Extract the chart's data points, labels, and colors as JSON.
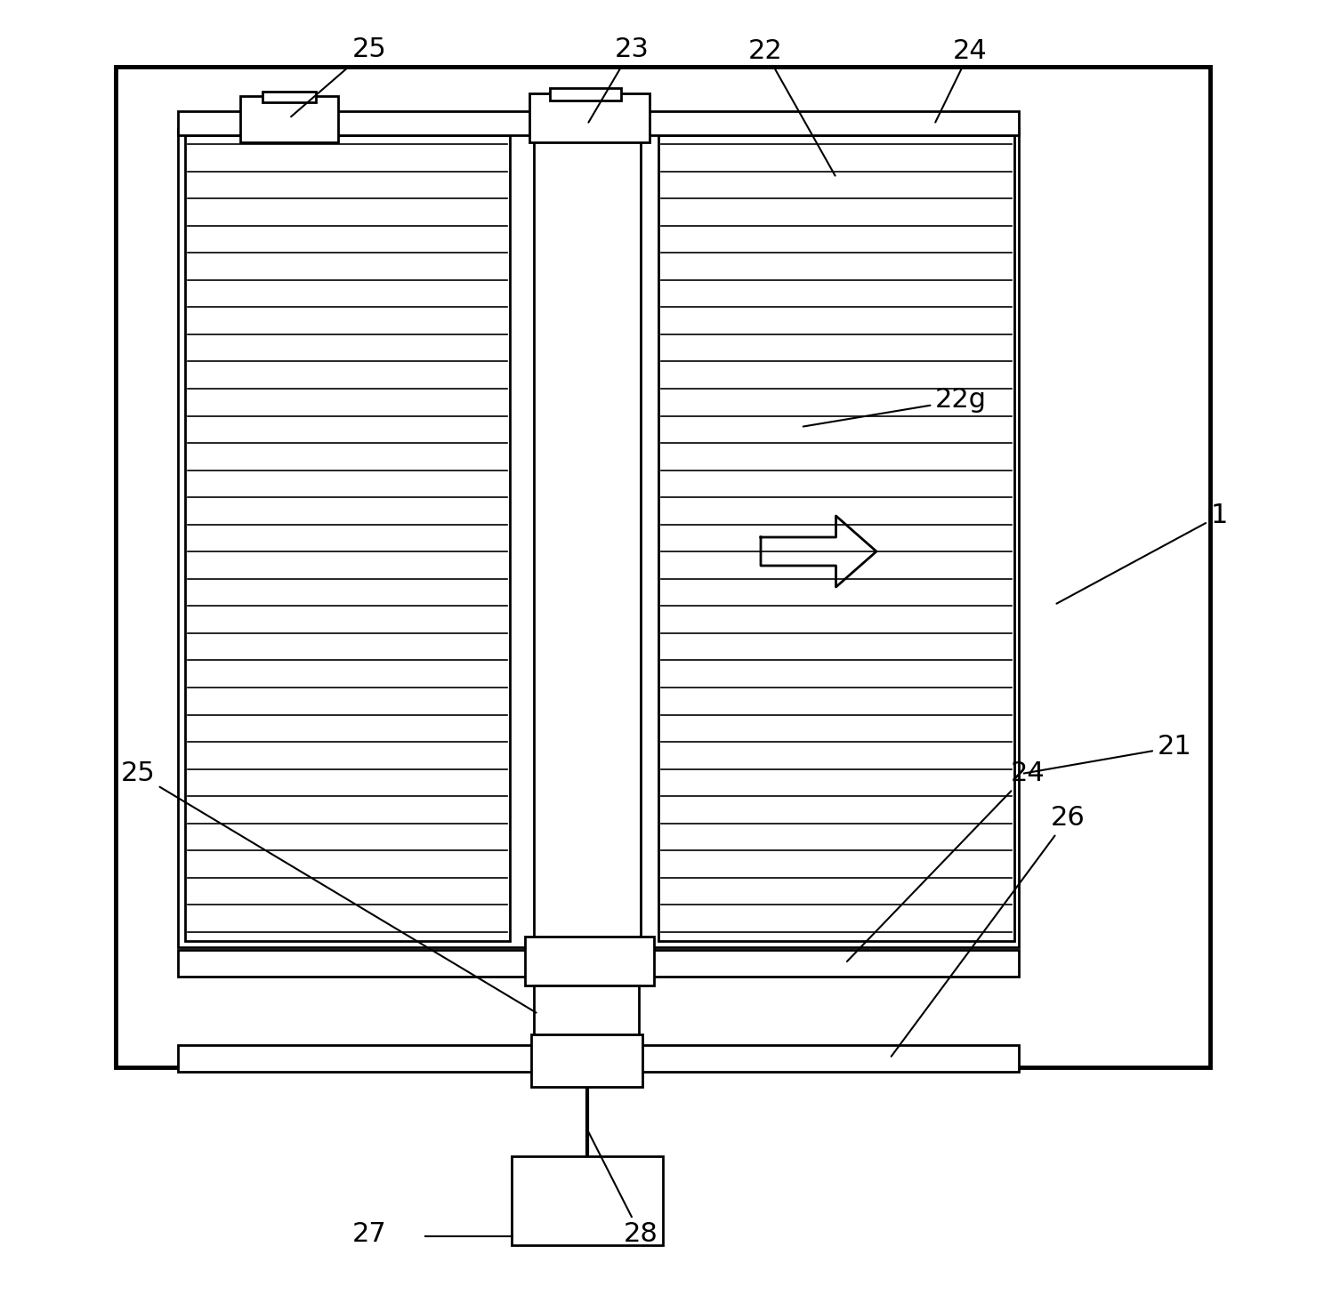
{
  "bg_color": "#ffffff",
  "line_color": "#000000",
  "lw_thin": 1.2,
  "lw_med": 2.0,
  "lw_thick": 3.5,
  "fig_width": 15.06,
  "fig_height": 14.56,
  "dpi": 100
}
